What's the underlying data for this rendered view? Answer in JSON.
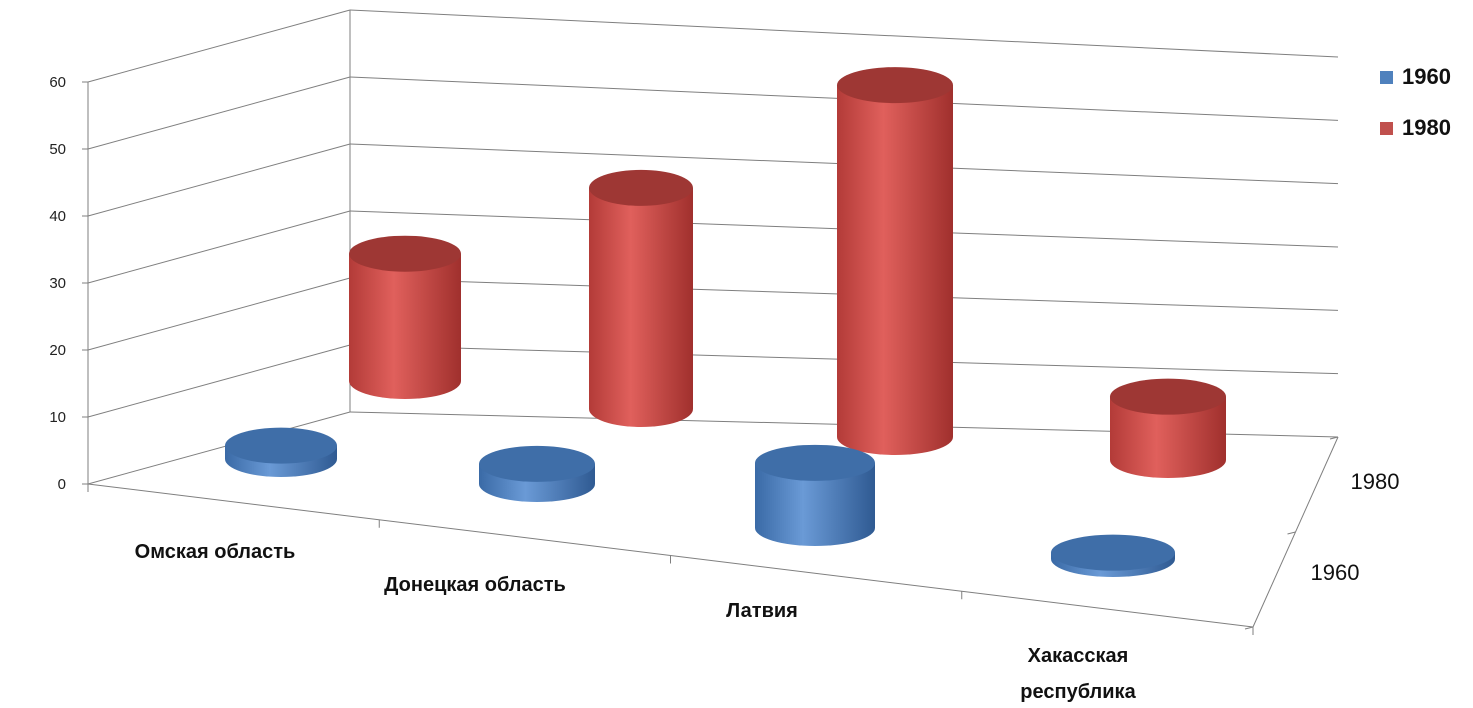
{
  "chart_data": {
    "type": "bar",
    "subtype": "3d-cylinder",
    "title": "",
    "xlabel": "",
    "ylabel": "",
    "ylim": [
      0,
      60
    ],
    "yticks": [
      "0",
      "10",
      "20",
      "30",
      "40",
      "50",
      "60"
    ],
    "grid": true,
    "legend_position": "right",
    "categories": [
      "Омская область",
      "Донецкая область",
      "Латвия",
      "Хакасская республика"
    ],
    "depth_labels": [
      "1980",
      "1960"
    ],
    "series": [
      {
        "name": "1960",
        "color": "#4f81bd",
        "values": [
          2,
          3,
          10,
          1
        ]
      },
      {
        "name": "1980",
        "color": "#c0504d",
        "values": [
          19,
          33,
          54,
          10
        ]
      }
    ]
  }
}
